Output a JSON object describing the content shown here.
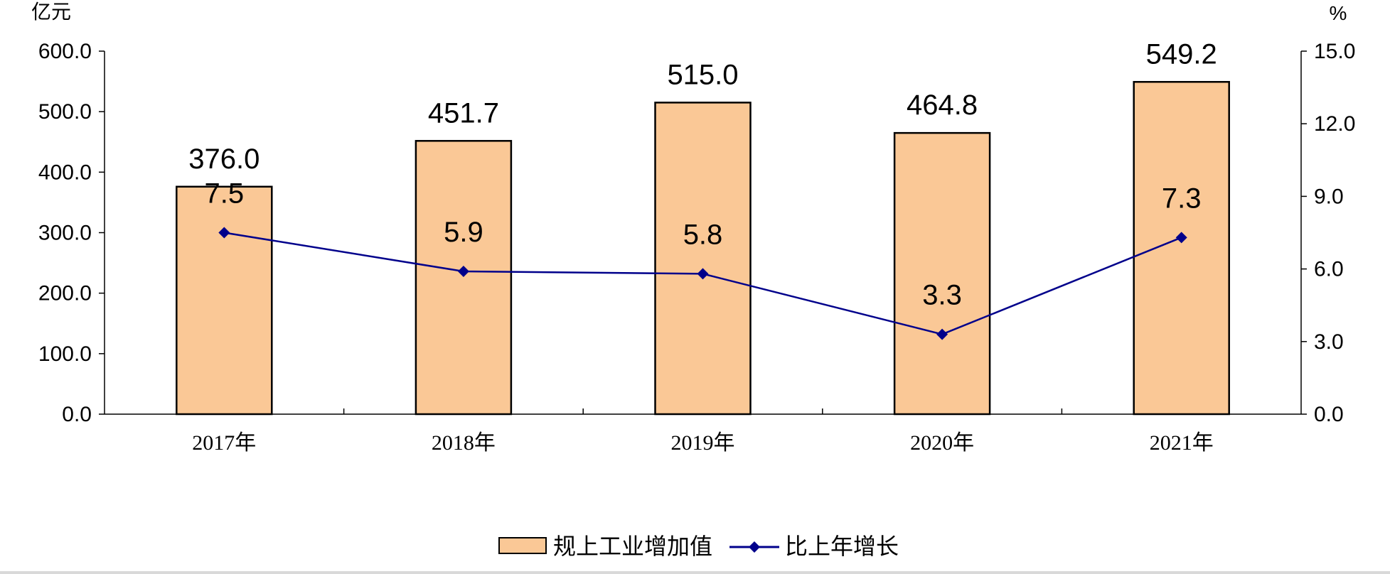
{
  "chart_data": {
    "type": "bar",
    "title": "",
    "categories": [
      "2017年",
      "2018年",
      "2019年",
      "2020年",
      "2021年"
    ],
    "series": [
      {
        "name": "规上工业增加值",
        "type": "bar",
        "axis": "left",
        "values": [
          376.0,
          451.7,
          515.0,
          464.8,
          549.2
        ],
        "value_labels": [
          "376.0",
          "451.7",
          "515.0",
          "464.8",
          "549.2"
        ]
      },
      {
        "name": "比上年增长",
        "type": "line",
        "axis": "right",
        "values": [
          7.5,
          5.9,
          5.8,
          3.3,
          7.3
        ],
        "value_labels": [
          "7.5",
          "5.9",
          "5.8",
          "3.3",
          "7.3"
        ]
      }
    ],
    "y_left": {
      "unit": "亿元",
      "range": [
        0,
        600
      ],
      "ticks": [
        "0.0",
        "100.0",
        "200.0",
        "300.0",
        "400.0",
        "500.0",
        "600.0"
      ]
    },
    "y_right": {
      "unit": "%",
      "range": [
        0,
        15
      ],
      "ticks": [
        "0.0",
        "3.0",
        "6.0",
        "9.0",
        "12.0",
        "15.0"
      ]
    },
    "grid": false,
    "legend": {
      "position": "bottom",
      "items": [
        "规上工业增加值",
        "比上年增长"
      ]
    },
    "colors": {
      "bar_fill": "#FAC896",
      "bar_stroke": "#000000",
      "line": "#00008B",
      "axis": "#000000"
    }
  }
}
